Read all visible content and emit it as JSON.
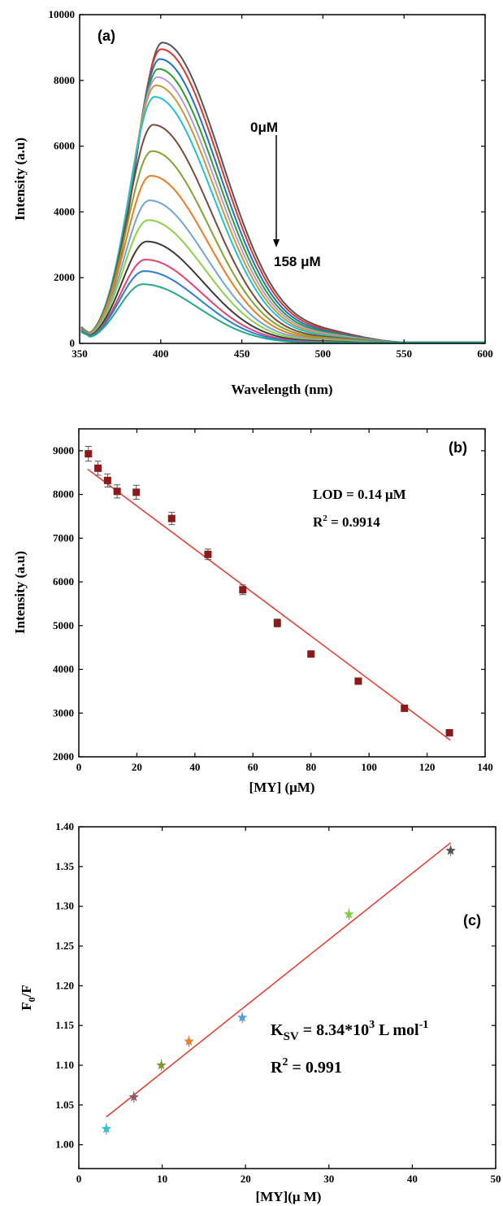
{
  "chart_data": [
    {
      "type": "line",
      "panel_label": "(a)",
      "xlabel": "Wavelength (nm)",
      "ylabel": "Intensity (a.u)",
      "xlim": [
        350,
        600
      ],
      "ylim": [
        0,
        10000
      ],
      "xticks": [
        350,
        400,
        450,
        500,
        550,
        600
      ],
      "yticks": [
        0,
        2000,
        4000,
        6000,
        8000,
        10000
      ],
      "annotations": {
        "top": "0μM",
        "bottom": "158 μM"
      },
      "peaks": [
        9150,
        8950,
        8650,
        8350,
        8100,
        7850,
        7500,
        6650,
        5850,
        5100,
        4350,
        3750,
        3100,
        2550,
        2200,
        1800
      ],
      "colors": [
        "#555555",
        "#e0352e",
        "#1f6fd1",
        "#2ca02c",
        "#b79ad8",
        "#c49a3a",
        "#21c0d6",
        "#7a4a3a",
        "#7fa334",
        "#f07a20",
        "#6fa6d8",
        "#8cd048",
        "#3a3a3a",
        "#e8416e",
        "#2a7fd0",
        "#23a88a"
      ]
    },
    {
      "type": "scatter",
      "panel_label": "(b)",
      "xlabel": "[MY] (μM)",
      "ylabel": "Intensity (a.u)",
      "xlim": [
        0,
        140
      ],
      "ylim": [
        2000,
        9500
      ],
      "xticks": [
        0,
        20,
        40,
        60,
        80,
        100,
        120,
        140
      ],
      "yticks": [
        2000,
        3000,
        4000,
        5000,
        6000,
        7000,
        8000,
        9000
      ],
      "annotations": {
        "lod": "LOD = 0.14 μM",
        "r2_prefix": "R",
        "r2_sup": "2",
        "r2_value": " = 0.9914"
      },
      "x": [
        3.3,
        6.6,
        9.9,
        13.2,
        19.8,
        32.0,
        44.5,
        56.5,
        68.4,
        80.0,
        96.3,
        112.2,
        127.7
      ],
      "y": [
        8930,
        8600,
        8320,
        8070,
        8050,
        7450,
        6630,
        5820,
        5060,
        4350,
        3730,
        3110,
        2550
      ],
      "errors": [
        170,
        160,
        150,
        150,
        160,
        140,
        120,
        110,
        90,
        60,
        60,
        50,
        50
      ],
      "fit": {
        "x": [
          3,
          128
        ],
        "y": [
          8580,
          2380
        ]
      },
      "marker_color": "#8b1a1a",
      "fit_color": "#e8362a"
    },
    {
      "type": "scatter",
      "panel_label": "(c)",
      "xlabel": "[MY](μ M)",
      "ylabel_main": "F",
      "ylabel_sub": "0",
      "ylabel_tail": "/F",
      "xlim": [
        0,
        50
      ],
      "ylim": [
        0.97,
        1.4
      ],
      "xticks": [
        0,
        10,
        20,
        30,
        40,
        50
      ],
      "yticks": [
        1.0,
        1.05,
        1.1,
        1.15,
        1.2,
        1.25,
        1.3,
        1.35,
        1.4
      ],
      "ytick_labels": [
        "1.00",
        "1.05",
        "1.10",
        "1.15",
        "1.20",
        "1.25",
        "1.30",
        "1.35",
        "1.40"
      ],
      "annotations": {
        "ksv_k": "K",
        "ksv_sub": "SV",
        "ksv_mid": " = 8.34*10",
        "ksv_sup1": "3",
        "ksv_unit": " L mol",
        "ksv_sup2": "-1",
        "r2_prefix": "R",
        "r2_sup": "2",
        "r2_value": " = 0.991"
      },
      "x": [
        3.3,
        6.6,
        9.9,
        13.2,
        19.6,
        32.4,
        44.6
      ],
      "y": [
        1.02,
        1.06,
        1.1,
        1.13,
        1.16,
        1.29,
        1.37
      ],
      "marker_colors": [
        "#2ec4d6",
        "#8a5a6a",
        "#7e9a2e",
        "#f07a20",
        "#5a9ad8",
        "#7ccf3e",
        "#555555"
      ],
      "fit": {
        "x": [
          3.3,
          44.6
        ],
        "y": [
          1.035,
          1.38
        ]
      },
      "fit_color": "#e8362a"
    }
  ]
}
